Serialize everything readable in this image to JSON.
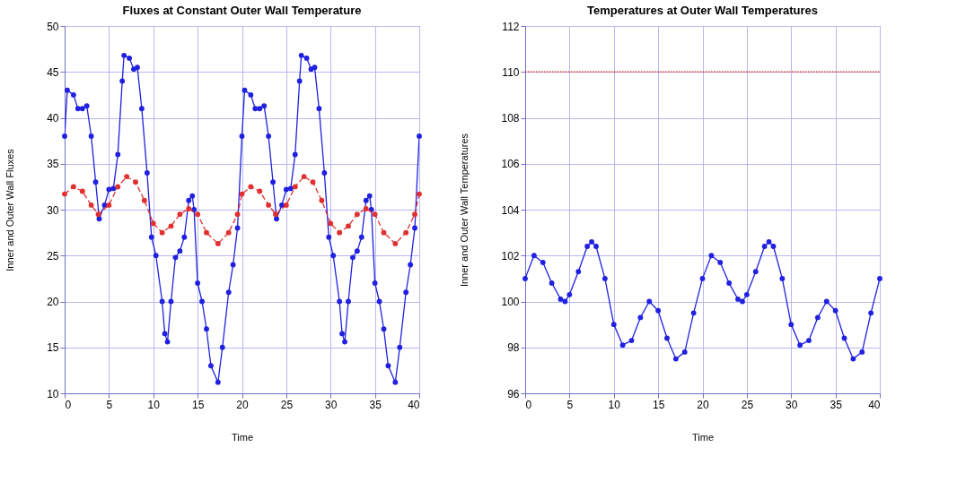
{
  "chart_data": [
    {
      "type": "line",
      "title": "Fluxes at Constant Outer Wall Temperature",
      "xlabel": "Time",
      "ylabel": "Inner and Outer Wall Fluxes",
      "xlim": [
        0,
        40
      ],
      "xticks": [
        0,
        5,
        10,
        15,
        20,
        25,
        30,
        35,
        40
      ],
      "ylim": [
        10,
        50
      ],
      "yticks": [
        10,
        15,
        20,
        25,
        30,
        35,
        40,
        45,
        50
      ],
      "grid": true,
      "marker": "circle",
      "series": [
        {
          "color": "#2020e0",
          "line_style": "solid",
          "x": [
            0,
            0.3,
            1,
            1.5,
            2,
            2.5,
            3,
            3.5,
            3.9,
            4.5,
            5,
            5.5,
            6,
            6.5,
            6.7,
            7.3,
            7.8,
            8.2,
            8.7,
            9.3,
            9.8,
            10.3,
            11,
            11.3,
            11.6,
            12,
            12.5,
            13,
            13.5,
            14,
            14.4,
            14.6,
            15,
            15.5,
            16,
            16.5,
            17.3,
            17.8,
            18.5,
            19,
            19.5,
            20,
            20.3,
            21,
            21.5,
            22,
            22.5,
            23,
            23.5,
            23.9,
            24.5,
            25,
            25.5,
            26,
            26.5,
            26.7,
            27.3,
            27.8,
            28.2,
            28.7,
            29.3,
            29.8,
            30.3,
            31,
            31.3,
            31.6,
            32,
            32.5,
            33,
            33.5,
            34,
            34.4,
            34.6,
            35,
            35.5,
            36,
            36.5,
            37.3,
            37.8,
            38.5,
            39,
            39.5,
            40
          ],
          "values": [
            38,
            43,
            42.5,
            41,
            41,
            41.3,
            38,
            33,
            29,
            30.5,
            32.2,
            32.3,
            36,
            44,
            46.8,
            46.5,
            45.3,
            45.5,
            41,
            34,
            27,
            25,
            20,
            16.5,
            15.6,
            20,
            24.8,
            25.5,
            27,
            31,
            31.5,
            30,
            22,
            20,
            17,
            13,
            11.2,
            15,
            21,
            24,
            28,
            38,
            43,
            42.5,
            41,
            41,
            41.3,
            38,
            33,
            29,
            30.5,
            32.2,
            32.3,
            36,
            44,
            46.8,
            46.5,
            45.3,
            45.5,
            41,
            34,
            27,
            25,
            20,
            16.5,
            15.6,
            20,
            24.8,
            25.5,
            27,
            31,
            31.5,
            30,
            22,
            20,
            17,
            13,
            11.2,
            15,
            21,
            24,
            28,
            38
          ]
        },
        {
          "color": "#e03030",
          "line_style": "dashed",
          "x": [
            0,
            1,
            2,
            3,
            3.8,
            5,
            6,
            7,
            8,
            9,
            10,
            11,
            12,
            13,
            14,
            15,
            16,
            17.3,
            18.5,
            19.5,
            20,
            21,
            22,
            23,
            23.8,
            25,
            26,
            27,
            28,
            29,
            30,
            31,
            32,
            33,
            34,
            35,
            36,
            37.3,
            38.5,
            39.5,
            40
          ],
          "values": [
            31.7,
            32.5,
            32,
            30.5,
            29.5,
            30.5,
            32.5,
            33.6,
            33,
            31,
            28.5,
            27.5,
            28.2,
            29.5,
            30.1,
            29.5,
            27.5,
            26.3,
            27.5,
            29.5,
            31.7,
            32.5,
            32,
            30.5,
            29.5,
            30.5,
            32.5,
            33.6,
            33,
            31,
            28.5,
            27.5,
            28.2,
            29.5,
            30.1,
            29.5,
            27.5,
            26.3,
            27.5,
            29.5,
            31.7
          ]
        }
      ]
    },
    {
      "type": "line",
      "title": "Temperatures at Outer Wall Temperatures",
      "xlabel": "Time",
      "ylabel": "Inner and Outer Wall Temperatures",
      "xlim": [
        0,
        40
      ],
      "xticks": [
        0,
        5,
        10,
        15,
        20,
        25,
        30,
        35,
        40
      ],
      "ylim": [
        96,
        112
      ],
      "yticks": [
        96,
        98,
        100,
        102,
        104,
        106,
        108,
        110,
        112
      ],
      "grid": true,
      "marker": "circle",
      "series": [
        {
          "color": "#e03030",
          "line_style": "dotted",
          "marker": "none",
          "x": [
            0,
            40
          ],
          "values": [
            110,
            110
          ]
        },
        {
          "color": "#2020e0",
          "line_style": "solid",
          "x": [
            0,
            1,
            2,
            3,
            4,
            4.5,
            5,
            6,
            7,
            7.5,
            8,
            9,
            10,
            11,
            12,
            13,
            14,
            15,
            16,
            17,
            18,
            19,
            20,
            21,
            22,
            23,
            24,
            24.5,
            25,
            26,
            27,
            27.5,
            28,
            29,
            30,
            31,
            32,
            33,
            34,
            35,
            36,
            37,
            38,
            39,
            40
          ],
          "values": [
            101,
            102,
            101.7,
            100.8,
            100.1,
            100,
            100.3,
            101.3,
            102.4,
            102.6,
            102.4,
            101,
            99,
            98.1,
            98.3,
            99.3,
            100,
            99.6,
            98.4,
            97.5,
            97.8,
            99.5,
            101,
            102,
            101.7,
            100.8,
            100.1,
            100,
            100.3,
            101.3,
            102.4,
            102.6,
            102.4,
            101,
            99,
            98.1,
            98.3,
            99.3,
            100,
            99.6,
            98.4,
            97.5,
            97.8,
            99.5,
            101
          ]
        }
      ]
    }
  ]
}
